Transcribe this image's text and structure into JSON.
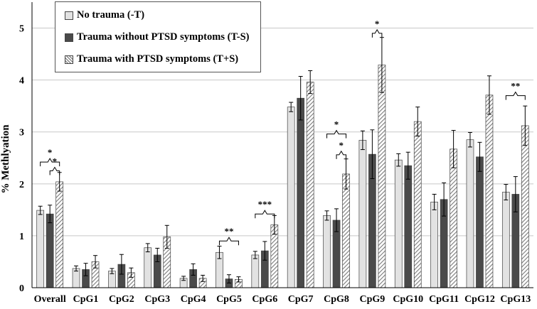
{
  "chart_data": {
    "type": "bar",
    "title": "",
    "xlabel": "",
    "ylabel": "% Methlyation",
    "ylim": [
      0,
      5.5
    ],
    "yticks": [
      "0",
      "1",
      "2",
      "3",
      "4",
      "5"
    ],
    "grid": true,
    "legend_position": "top-left",
    "categories": [
      "Overall",
      "CpG1",
      "CpG2",
      "CpG3",
      "CpG4",
      "CpG5",
      "CpG6",
      "CpG7",
      "CpG8",
      "CpG9",
      "CpG10",
      "CpG11",
      "CpG12",
      "CpG13"
    ],
    "series": [
      {
        "name": "No trauma (-T)",
        "pattern": "light",
        "color": "#e2e2e2",
        "values": [
          1.49,
          0.37,
          0.32,
          0.77,
          0.18,
          0.68,
          0.63,
          3.48,
          1.39,
          2.84,
          2.46,
          1.65,
          2.85,
          1.84
        ],
        "errors": [
          0.08,
          0.05,
          0.05,
          0.08,
          0.04,
          0.12,
          0.07,
          0.09,
          0.09,
          0.18,
          0.12,
          0.15,
          0.14,
          0.15
        ]
      },
      {
        "name": "Trauma without PTSD symptoms (T-S)",
        "pattern": "dark",
        "color": "#4a4a4a",
        "values": [
          1.42,
          0.35,
          0.45,
          0.63,
          0.35,
          0.17,
          0.71,
          3.65,
          1.3,
          2.57,
          2.35,
          1.7,
          2.52,
          1.8
        ],
        "errors": [
          0.17,
          0.12,
          0.19,
          0.13,
          0.11,
          0.08,
          0.18,
          0.42,
          0.22,
          0.47,
          0.26,
          0.32,
          0.28,
          0.34
        ]
      },
      {
        "name": "Trauma with PTSD symptoms (T+S)",
        "pattern": "hatch",
        "color": "#8a8a8a",
        "values": [
          2.04,
          0.5,
          0.29,
          0.98,
          0.18,
          0.16,
          1.21,
          3.96,
          2.19,
          4.29,
          3.2,
          2.67,
          3.71,
          3.12
        ],
        "errors": [
          0.18,
          0.12,
          0.09,
          0.22,
          0.06,
          0.05,
          0.18,
          0.22,
          0.29,
          0.53,
          0.28,
          0.36,
          0.37,
          0.38
        ]
      }
    ],
    "annotations": [
      {
        "label": "*",
        "category": "Overall",
        "from": 0,
        "to": 2,
        "at": 2.42
      },
      {
        "label": "*",
        "category": "Overall",
        "from": 1,
        "to": 2,
        "at": 2.25
      },
      {
        "label": "**",
        "category": "CpG5",
        "from": 0,
        "to": 2,
        "at": 0.9
      },
      {
        "label": "***",
        "category": "CpG6",
        "from": 0,
        "to": 2,
        "at": 1.42
      },
      {
        "label": "*",
        "category": "CpG8",
        "from": 0,
        "to": 2,
        "at": 2.96
      },
      {
        "label": "*",
        "category": "CpG8",
        "from": 1,
        "to": 2,
        "at": 2.56
      },
      {
        "label": "*",
        "category": "CpG9",
        "from": 1,
        "to": 2,
        "at": 4.9
      },
      {
        "label": "**",
        "category": "CpG13",
        "from": 0,
        "to": 2,
        "at": 3.7
      }
    ]
  }
}
